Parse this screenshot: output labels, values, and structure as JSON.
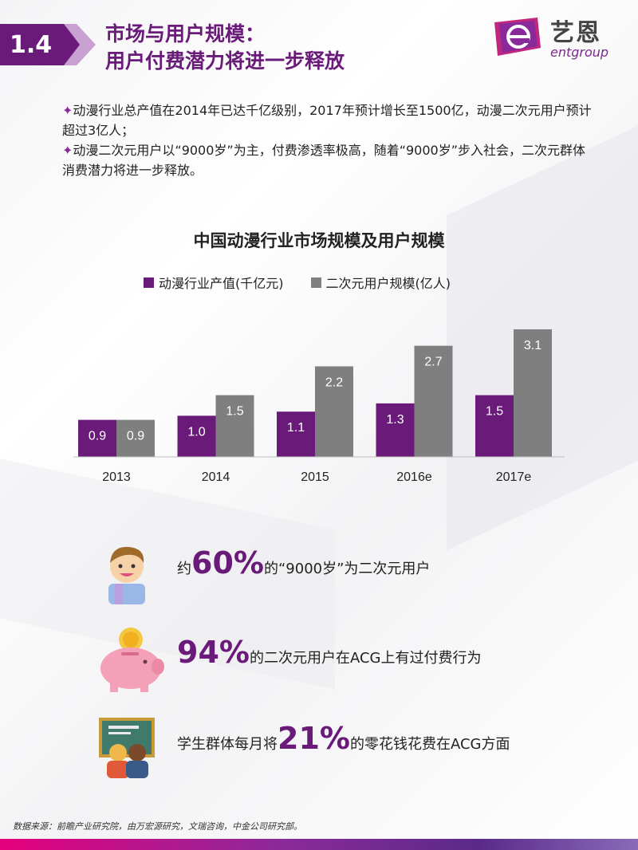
{
  "header": {
    "section_number": "1.4",
    "title_line1": "市场与用户规模：",
    "title_line2": "用户付费潜力将进一步释放"
  },
  "logo": {
    "cn": "艺恩",
    "en": "entgroup"
  },
  "bullets": [
    {
      "star": "✦",
      "text": "动漫行业总产值在2014年已达千亿级别，2017年预计增长至1500亿，动漫二次元用户预计超过3亿人；"
    },
    {
      "star": "✦",
      "text": "动漫二次元用户以“9000岁”为主，付费渗透率极高，随着“9000岁”步入社会，二次元群体消费潜力将进一步释放。"
    }
  ],
  "chart_data": {
    "type": "bar",
    "title": "中国动漫行业市场规模及用户规模",
    "categories": [
      "2013",
      "2014",
      "2015",
      "2016e",
      "2017e"
    ],
    "series": [
      {
        "name": "动漫行业产值(千亿元)",
        "values": [
          0.9,
          1.0,
          1.1,
          1.3,
          1.5
        ],
        "color": "#6a1b7a"
      },
      {
        "name": "二次元用户规模(亿人)",
        "values": [
          0.9,
          1.5,
          2.2,
          2.7,
          3.1
        ],
        "color": "#7f7f7f"
      }
    ],
    "value_labels": [
      [
        "0.9",
        "1.0",
        "1.1",
        "1.3",
        "1.5"
      ],
      [
        "0.9",
        "1.5",
        "2.2",
        "2.7",
        "3.1"
      ]
    ],
    "ylim": [
      0,
      3.1
    ],
    "grid": false,
    "legend": "top"
  },
  "stats": [
    {
      "prefix": "约",
      "big": "60%",
      "suffix": "的“9000岁”为二次元用户",
      "icon": "child-icon"
    },
    {
      "prefix": "",
      "big": "94%",
      "suffix": "的二次元用户在ACG上有过付费行为",
      "icon": "piggy-bank-icon"
    },
    {
      "prefix": "学生群体每月将",
      "big": "21%",
      "suffix": "的零花钱花费在ACG方面",
      "icon": "students-icon"
    }
  ],
  "source": "数据来源：前瞻产业研究院，由万宏源研究，文瑞咨询，中金公司研究部。",
  "colors": {
    "accent": "#6a1b7a",
    "gray": "#7f7f7f"
  }
}
